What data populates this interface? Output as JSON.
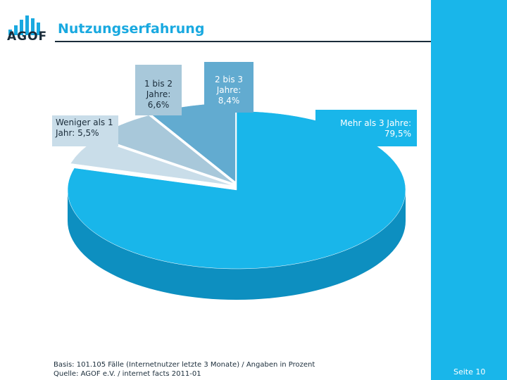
{
  "header": {
    "logo_text": "AGOF",
    "title": "Nutzungserfahrung"
  },
  "chart_data": {
    "type": "pie",
    "title": "Nutzungserfahrung",
    "slices": [
      {
        "label": "Weniger als 1 Jahr: 5,5%",
        "value": 5.5,
        "color": "#c9dde9"
      },
      {
        "label": "1 bis 2 Jahre: 6,6%",
        "value": 6.6,
        "color": "#a8c8da"
      },
      {
        "label": "2 bis 3 Jahre: 8,4%",
        "value": 8.4,
        "color": "#62abd0"
      },
      {
        "label": "Mehr als 3 Jahre: 79,5%",
        "value": 79.5,
        "color": "#19b6ea"
      }
    ],
    "side_color": "#0d8fc0"
  },
  "labels": {
    "weniger_line1": "Weniger als 1",
    "weniger_line2": "Jahr: 5,5%",
    "einsbiszwei_line1": "1 bis 2",
    "einsbiszwei_line2": "Jahre:",
    "einsbiszwei_line3": "6,6%",
    "zweibisdrei_line1": "2 bis 3",
    "zweibisdrei_line2": "Jahre:",
    "zweibisdrei_line3": "8,4%",
    "mehr_line1": "Mehr als 3 Jahre:",
    "mehr_line2": "79,5%"
  },
  "footer": {
    "basis": "Basis: 101.105 Fälle (Internetnutzer letzte 3 Monate) / Angaben in Prozent",
    "quelle": "Quelle: AGOF e.V. / internet facts 2011-01",
    "page": "Seite 10"
  },
  "colors": {
    "accent": "#19b6ea",
    "title": "#19a9e0",
    "dark": "#1a2c3a"
  }
}
